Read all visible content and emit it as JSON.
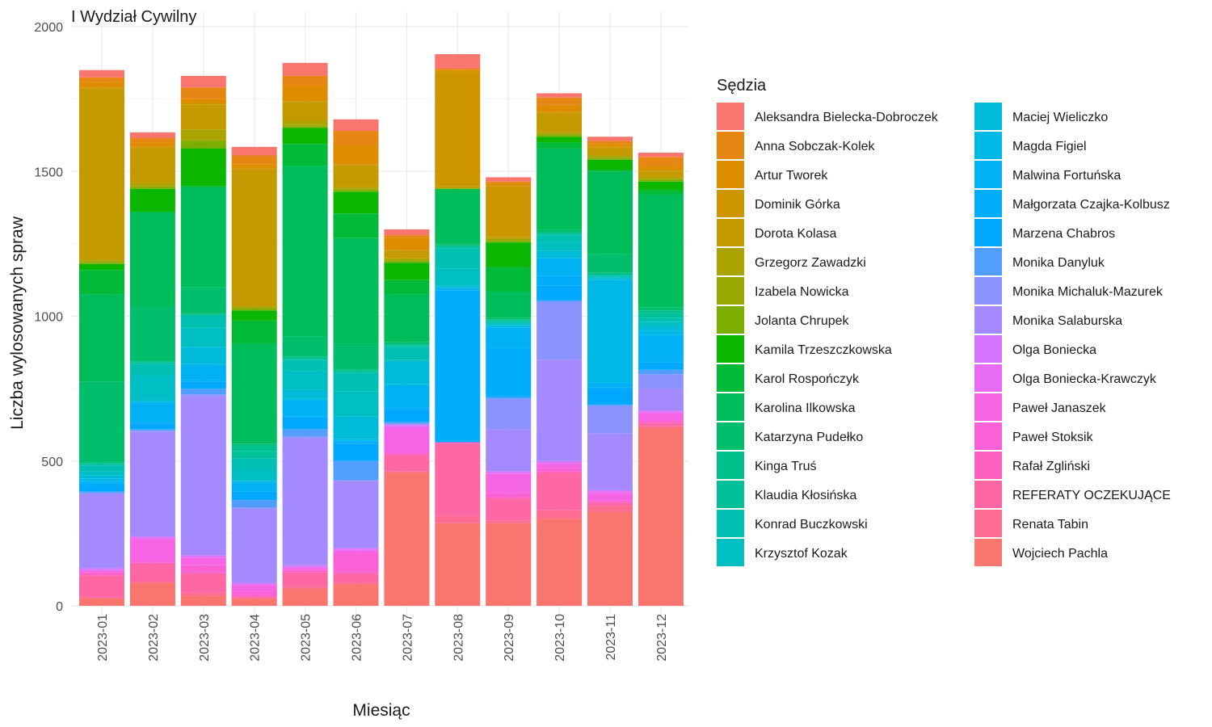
{
  "chart_data": {
    "type": "bar",
    "stacked": true,
    "title": "I Wydział Cywilny",
    "xlabel": "Miesiąc",
    "ylabel": "Liczba wylosowanych spraw",
    "ylim": [
      0,
      2000
    ],
    "yticks": [
      0,
      500,
      1000,
      1500,
      2000
    ],
    "grid": true,
    "legend_title": "Sędzia",
    "legend_position": "right",
    "categories": [
      "2023-01",
      "2023-02",
      "2023-03",
      "2023-04",
      "2023-05",
      "2023-06",
      "2023-07",
      "2023-08",
      "2023-09",
      "2023-10",
      "2023-11",
      "2023-12"
    ],
    "series": [
      {
        "name": "Wojciech Pachla",
        "color": "#F8766D",
        "values": [
          25,
          80,
          35,
          25,
          60,
          75,
          460,
          285,
          285,
          300,
          325,
          615
        ]
      },
      {
        "name": "Renata Tabin",
        "color": "#FF6C92",
        "values": [
          5,
          5,
          10,
          5,
          5,
          5,
          5,
          25,
          10,
          30,
          20,
          5
        ]
      },
      {
        "name": "REFERATY OCZEKUJĄCE",
        "color": "#FF67A4",
        "values": [
          75,
          60,
          65,
          0,
          50,
          30,
          55,
          250,
          75,
          130,
          10,
          10
        ]
      },
      {
        "name": "Rafał Zgliński",
        "color": "#FF61C3",
        "values": [
          5,
          5,
          5,
          5,
          5,
          5,
          5,
          5,
          5,
          5,
          5,
          5
        ]
      },
      {
        "name": "Paweł Stoksik",
        "color": "#FB61D7",
        "values": [
          5,
          5,
          25,
          15,
          5,
          65,
          5,
          0,
          15,
          10,
          5,
          5
        ]
      },
      {
        "name": "Paweł Janaszek",
        "color": "#F564E3",
        "values": [
          5,
          75,
          25,
          20,
          5,
          10,
          85,
          0,
          65,
          15,
          25,
          25
        ]
      },
      {
        "name": "Olga Boniecka-Krawczyk",
        "color": "#E76BF3",
        "values": [
          5,
          5,
          5,
          5,
          5,
          5,
          5,
          0,
          5,
          5,
          5,
          5
        ]
      },
      {
        "name": "Olga Boniecka",
        "color": "#D575FE",
        "values": [
          5,
          5,
          5,
          5,
          5,
          5,
          5,
          0,
          5,
          5,
          5,
          5
        ]
      },
      {
        "name": "Monika Salaburska",
        "color": "#A58AFF",
        "values": [
          255,
          360,
          550,
          255,
          440,
          230,
          0,
          0,
          145,
          350,
          195,
          75
        ]
      },
      {
        "name": "Monika Michaluk-Mazurek",
        "color": "#8B93FF",
        "values": [
          5,
          5,
          5,
          5,
          5,
          5,
          5,
          0,
          105,
          200,
          95,
          50
        ]
      },
      {
        "name": "Monika Danyluk",
        "color": "#529EFF",
        "values": [
          5,
          5,
          20,
          25,
          25,
          65,
          5,
          0,
          5,
          5,
          5,
          15
        ]
      },
      {
        "name": "Marzena Chabros",
        "color": "#00A9FF",
        "values": [
          15,
          20,
          25,
          30,
          40,
          60,
          45,
          5,
          5,
          50,
          55,
          25
        ]
      },
      {
        "name": "Małgorzata Czajka-Kolbusz",
        "color": "#00ADFA",
        "values": [
          15,
          5,
          5,
          5,
          5,
          5,
          5,
          520,
          165,
          35,
          5,
          5
        ]
      },
      {
        "name": "Malwina Fortuńska",
        "color": "#00B2F3",
        "values": [
          5,
          65,
          50,
          25,
          55,
          5,
          75,
          5,
          70,
          60,
          15,
          90
        ]
      },
      {
        "name": "Magda Figiel",
        "color": "#00B8E5",
        "values": [
          10,
          5,
          5,
          5,
          5,
          5,
          5,
          5,
          5,
          5,
          355,
          15
        ]
      },
      {
        "name": "Maciej Wieliczko",
        "color": "#00BCD8",
        "values": [
          10,
          5,
          60,
          5,
          30,
          80,
          80,
          5,
          5,
          20,
          5,
          15
        ]
      },
      {
        "name": "Krzysztof Kozak",
        "color": "#00BFC4",
        "values": [
          15,
          85,
          65,
          35,
          65,
          85,
          5,
          60,
          5,
          30,
          5,
          15
        ]
      },
      {
        "name": "Konrad Buczkowski",
        "color": "#00C0B4",
        "values": [
          20,
          40,
          40,
          40,
          40,
          65,
          45,
          70,
          5,
          25,
          5,
          15
        ]
      },
      {
        "name": "Klaudia Kłosińska",
        "color": "#00C19A",
        "values": [
          5,
          5,
          5,
          25,
          5,
          5,
          5,
          5,
          5,
          5,
          5,
          15
        ]
      },
      {
        "name": "Kinga Truś",
        "color": "#00C08B",
        "values": [
          5,
          5,
          5,
          20,
          5,
          5,
          5,
          5,
          5,
          5,
          5,
          10
        ]
      },
      {
        "name": "Katarzyna Pudełko",
        "color": "#00BE6C",
        "values": [
          280,
          190,
          90,
          5,
          70,
          90,
          5,
          5,
          5,
          10,
          65,
          10
        ]
      },
      {
        "name": "Karolina Ilkowska",
        "color": "#00BD5C",
        "values": [
          300,
          325,
          345,
          345,
          590,
          365,
          165,
          185,
          90,
          280,
          285,
          390
        ]
      },
      {
        "name": "Karol Rospończyk",
        "color": "#00BA38",
        "values": [
          85,
          0,
          5,
          80,
          75,
          85,
          50,
          5,
          85,
          20,
          5,
          15
        ]
      },
      {
        "name": "Kamila Trzeszczkowska",
        "color": "#0CB702",
        "values": [
          20,
          80,
          130,
          35,
          55,
          75,
          60,
          0,
          85,
          20,
          35,
          30
        ]
      },
      {
        "name": "Jolanta Chrupek",
        "color": "#7CAE00",
        "values": [
          5,
          5,
          25,
          5,
          5,
          5,
          5,
          0,
          5,
          5,
          5,
          5
        ]
      },
      {
        "name": "Izabela Nowicka",
        "color": "#99A800",
        "values": [
          5,
          5,
          5,
          5,
          5,
          5,
          5,
          0,
          5,
          5,
          5,
          5
        ]
      },
      {
        "name": "Grzegorz Zawadzki",
        "color": "#ABA300",
        "values": [
          5,
          10,
          35,
          5,
          15,
          5,
          5,
          5,
          5,
          5,
          5,
          5
        ]
      },
      {
        "name": "Dorota Kolasa",
        "color": "#C49A00",
        "values": [
          590,
          120,
          85,
          470,
          65,
          75,
          25,
          5,
          5,
          65,
          25,
          20
        ]
      },
      {
        "name": "Dominik Górka",
        "color": "#CD9600",
        "values": [
          5,
          5,
          5,
          5,
          5,
          5,
          5,
          395,
          175,
          5,
          5,
          5
        ]
      },
      {
        "name": "Artur Tworek",
        "color": "#DE8C00",
        "values": [
          20,
          15,
          15,
          15,
          50,
          65,
          40,
          5,
          10,
          25,
          10,
          15
        ]
      },
      {
        "name": "Anna Sobczak-Kolek",
        "color": "#E68613",
        "values": [
          15,
          15,
          40,
          30,
          35,
          50,
          10,
          5,
          5,
          25,
          10,
          30
        ]
      },
      {
        "name": "Aleksandra Bielecka-Dobroczek",
        "color": "#F8766D",
        "values": [
          25,
          20,
          40,
          30,
          45,
          40,
          20,
          50,
          15,
          15,
          15,
          15
        ]
      }
    ]
  },
  "legend_order": [
    "Aleksandra Bielecka-Dobroczek",
    "Anna Sobczak-Kolek",
    "Artur Tworek",
    "Dominik Górka",
    "Dorota Kolasa",
    "Grzegorz Zawadzki",
    "Izabela Nowicka",
    "Jolanta Chrupek",
    "Kamila Trzeszczkowska",
    "Karol Rospończyk",
    "Karolina Ilkowska",
    "Katarzyna Pudełko",
    "Kinga Truś",
    "Klaudia Kłosińska",
    "Konrad Buczkowski",
    "Krzysztof Kozak",
    "Maciej Wieliczko",
    "Magda Figiel",
    "Malwina Fortuńska",
    "Małgorzata Czajka-Kolbusz",
    "Marzena Chabros",
    "Monika Danyluk",
    "Monika Michaluk-Mazurek",
    "Monika Salaburska",
    "Olga Boniecka",
    "Olga Boniecka-Krawczyk",
    "Paweł Janaszek",
    "Paweł Stoksik",
    "Rafał Zgliński",
    "REFERATY OCZEKUJĄCE",
    "Renata Tabin",
    "Wojciech Pachla"
  ]
}
